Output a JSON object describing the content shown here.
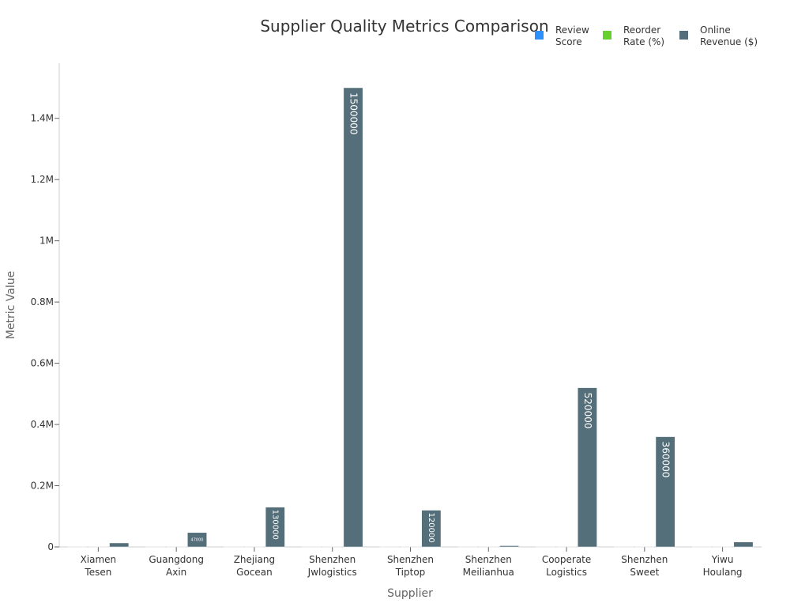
{
  "chart_data": {
    "type": "bar",
    "title": "Supplier Quality Metrics Comparison",
    "xlabel": "Supplier",
    "ylabel": "Metric Value",
    "categories": [
      [
        "Xiamen",
        "Tesen"
      ],
      [
        "Guangdong",
        "Axin"
      ],
      [
        "Zhejiang",
        "Gocean"
      ],
      [
        "Shenzhen",
        "Jwlogistics"
      ],
      [
        "Shenzhen",
        "Tiptop"
      ],
      [
        "Shenzhen",
        "Meilianhua"
      ],
      [
        "Cooperate",
        "Logistics"
      ],
      [
        "Shenzhen",
        "Sweet"
      ],
      [
        "Yiwu",
        "Houlang"
      ]
    ],
    "series": [
      {
        "name": [
          "Review",
          "Score"
        ],
        "color": "#2E90FA",
        "values": [
          4.8,
          4.9,
          4.9,
          4.8,
          4.9,
          4.7,
          5.0,
          5.0,
          4.7
        ]
      },
      {
        "name": [
          "Reorder",
          "Rate (%)"
        ],
        "color": "#66D12E",
        "values": [
          42,
          39,
          30,
          50,
          45,
          25,
          60,
          48,
          21
        ]
      },
      {
        "name": [
          "Online",
          "Revenue ($)"
        ],
        "color": "#546E7A",
        "values": [
          13000,
          47000,
          130000,
          1500000,
          120000,
          4000,
          520000,
          360000,
          16000
        ]
      }
    ],
    "bar_labels": [
      "13000",
      "47000",
      "130000",
      "1500000",
      "120000",
      "",
      "520000",
      "360000",
      ""
    ],
    "ylim": [
      0,
      1580000
    ],
    "yticks": [
      0,
      200000,
      400000,
      600000,
      800000,
      1000000,
      1200000,
      1400000
    ],
    "ytick_labels": [
      "0",
      "0.2M",
      "0.4M",
      "0.6M",
      "0.8M",
      "1M",
      "1.2M",
      "1.4M"
    ],
    "grid": false,
    "legend_position": "top-right"
  }
}
